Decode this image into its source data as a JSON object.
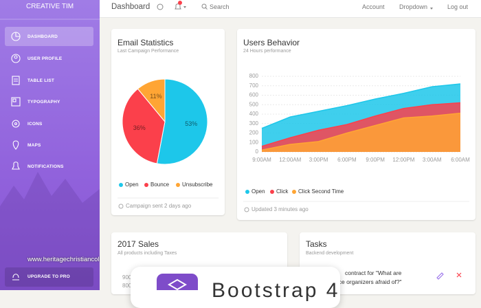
{
  "sidebar": {
    "brand": "CREATIVE TIM",
    "items": [
      "DASHBOARD",
      "USER PROFILE",
      "TABLE LIST",
      "TYPOGRAPHY",
      "ICONS",
      "MAPS",
      "NOTIFICATIONS"
    ],
    "upgrade": "UPGRADE TO PRO"
  },
  "watermark": "www.heritagechristiancollege.com",
  "navbar": {
    "title": "Dashboard",
    "search": "Search",
    "links": [
      "Account",
      "Dropdown",
      "Log out"
    ]
  },
  "chart_data": [
    {
      "type": "pie",
      "title": "Email Statistics",
      "subtitle": "Last Campaign Performance",
      "categories": [
        "Open",
        "Bounce",
        "Unsubscribe"
      ],
      "values": [
        53,
        36,
        11
      ],
      "value_labels": [
        "53%",
        "36%",
        "11%"
      ],
      "colors": [
        "#1dc7ea",
        "#fb404b",
        "#ffa534"
      ],
      "footer": "Campaign sent 2 days ago"
    },
    {
      "type": "area",
      "title": "Users Behavior",
      "subtitle": "24 Hours performance",
      "categories": [
        "9:00AM",
        "12:00AM",
        "3:00PM",
        "6:00PM",
        "9:00PM",
        "12:00PM",
        "3:00AM",
        "6:00AM"
      ],
      "series": [
        {
          "name": "Open",
          "color": "#1dc7ea",
          "values": [
            250,
            370,
            430,
            490,
            560,
            620,
            690,
            720
          ]
        },
        {
          "name": "Click",
          "color": "#fb404b",
          "values": [
            60,
            150,
            230,
            290,
            380,
            460,
            500,
            520
          ]
        },
        {
          "name": "Click Second Time",
          "color": "#ffa534",
          "values": [
            20,
            80,
            110,
            200,
            280,
            360,
            380,
            410
          ]
        }
      ],
      "ylim": [
        0,
        800
      ],
      "yticks": [
        0,
        100,
        200,
        300,
        400,
        500,
        600,
        700,
        800
      ],
      "grid": true,
      "footer": "Updated 3 minutes ago"
    }
  ],
  "sales": {
    "title": "2017 Sales",
    "subtitle": "All products including Taxes",
    "yticks": [
      900,
      800
    ]
  },
  "tasks": {
    "title": "Tasks",
    "subtitle": "Backend development",
    "lines": [
      "contract for \"What are",
      "nce organizers afraid of?\""
    ]
  },
  "popup": {
    "title": "Bootstrap 4"
  }
}
